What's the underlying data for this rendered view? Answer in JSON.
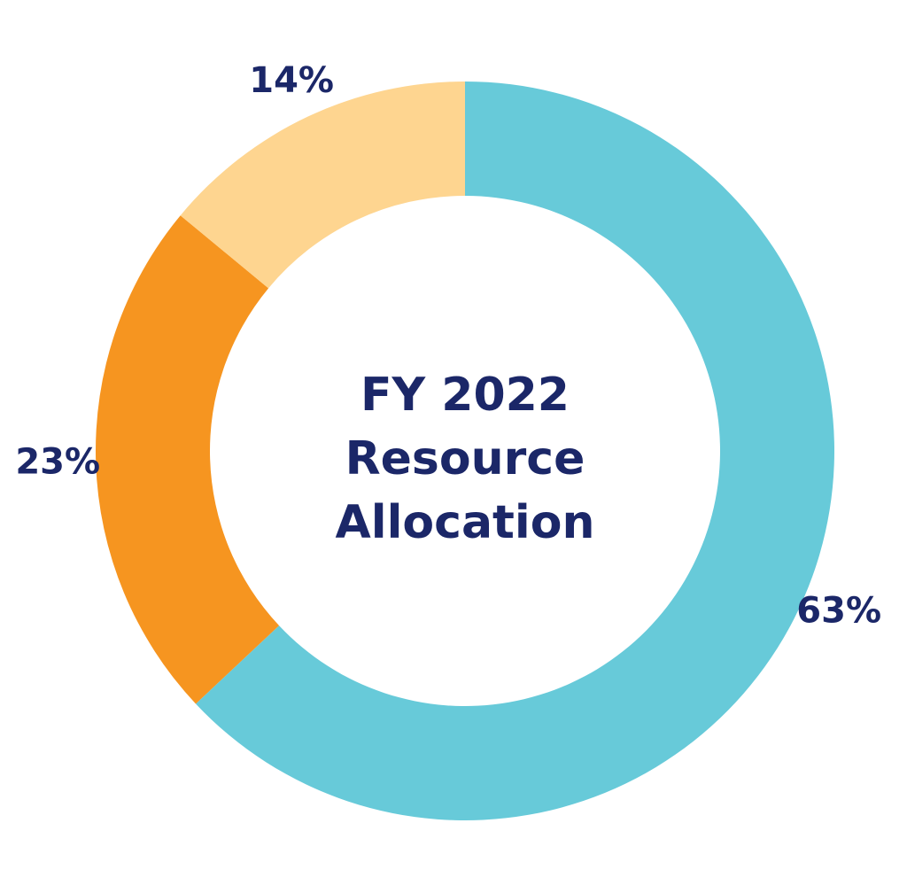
{
  "chart_data": {
    "type": "pie",
    "title_lines": [
      "FY 2022",
      "Resource",
      "Allocation"
    ],
    "slices": [
      {
        "label": "63%",
        "value": 63,
        "color": "#67cad9"
      },
      {
        "label": "23%",
        "value": 23,
        "color": "#f69520"
      },
      {
        "label": "14%",
        "value": 14,
        "color": "#fed590"
      }
    ],
    "label_color": "#1b2768",
    "legend": false
  }
}
